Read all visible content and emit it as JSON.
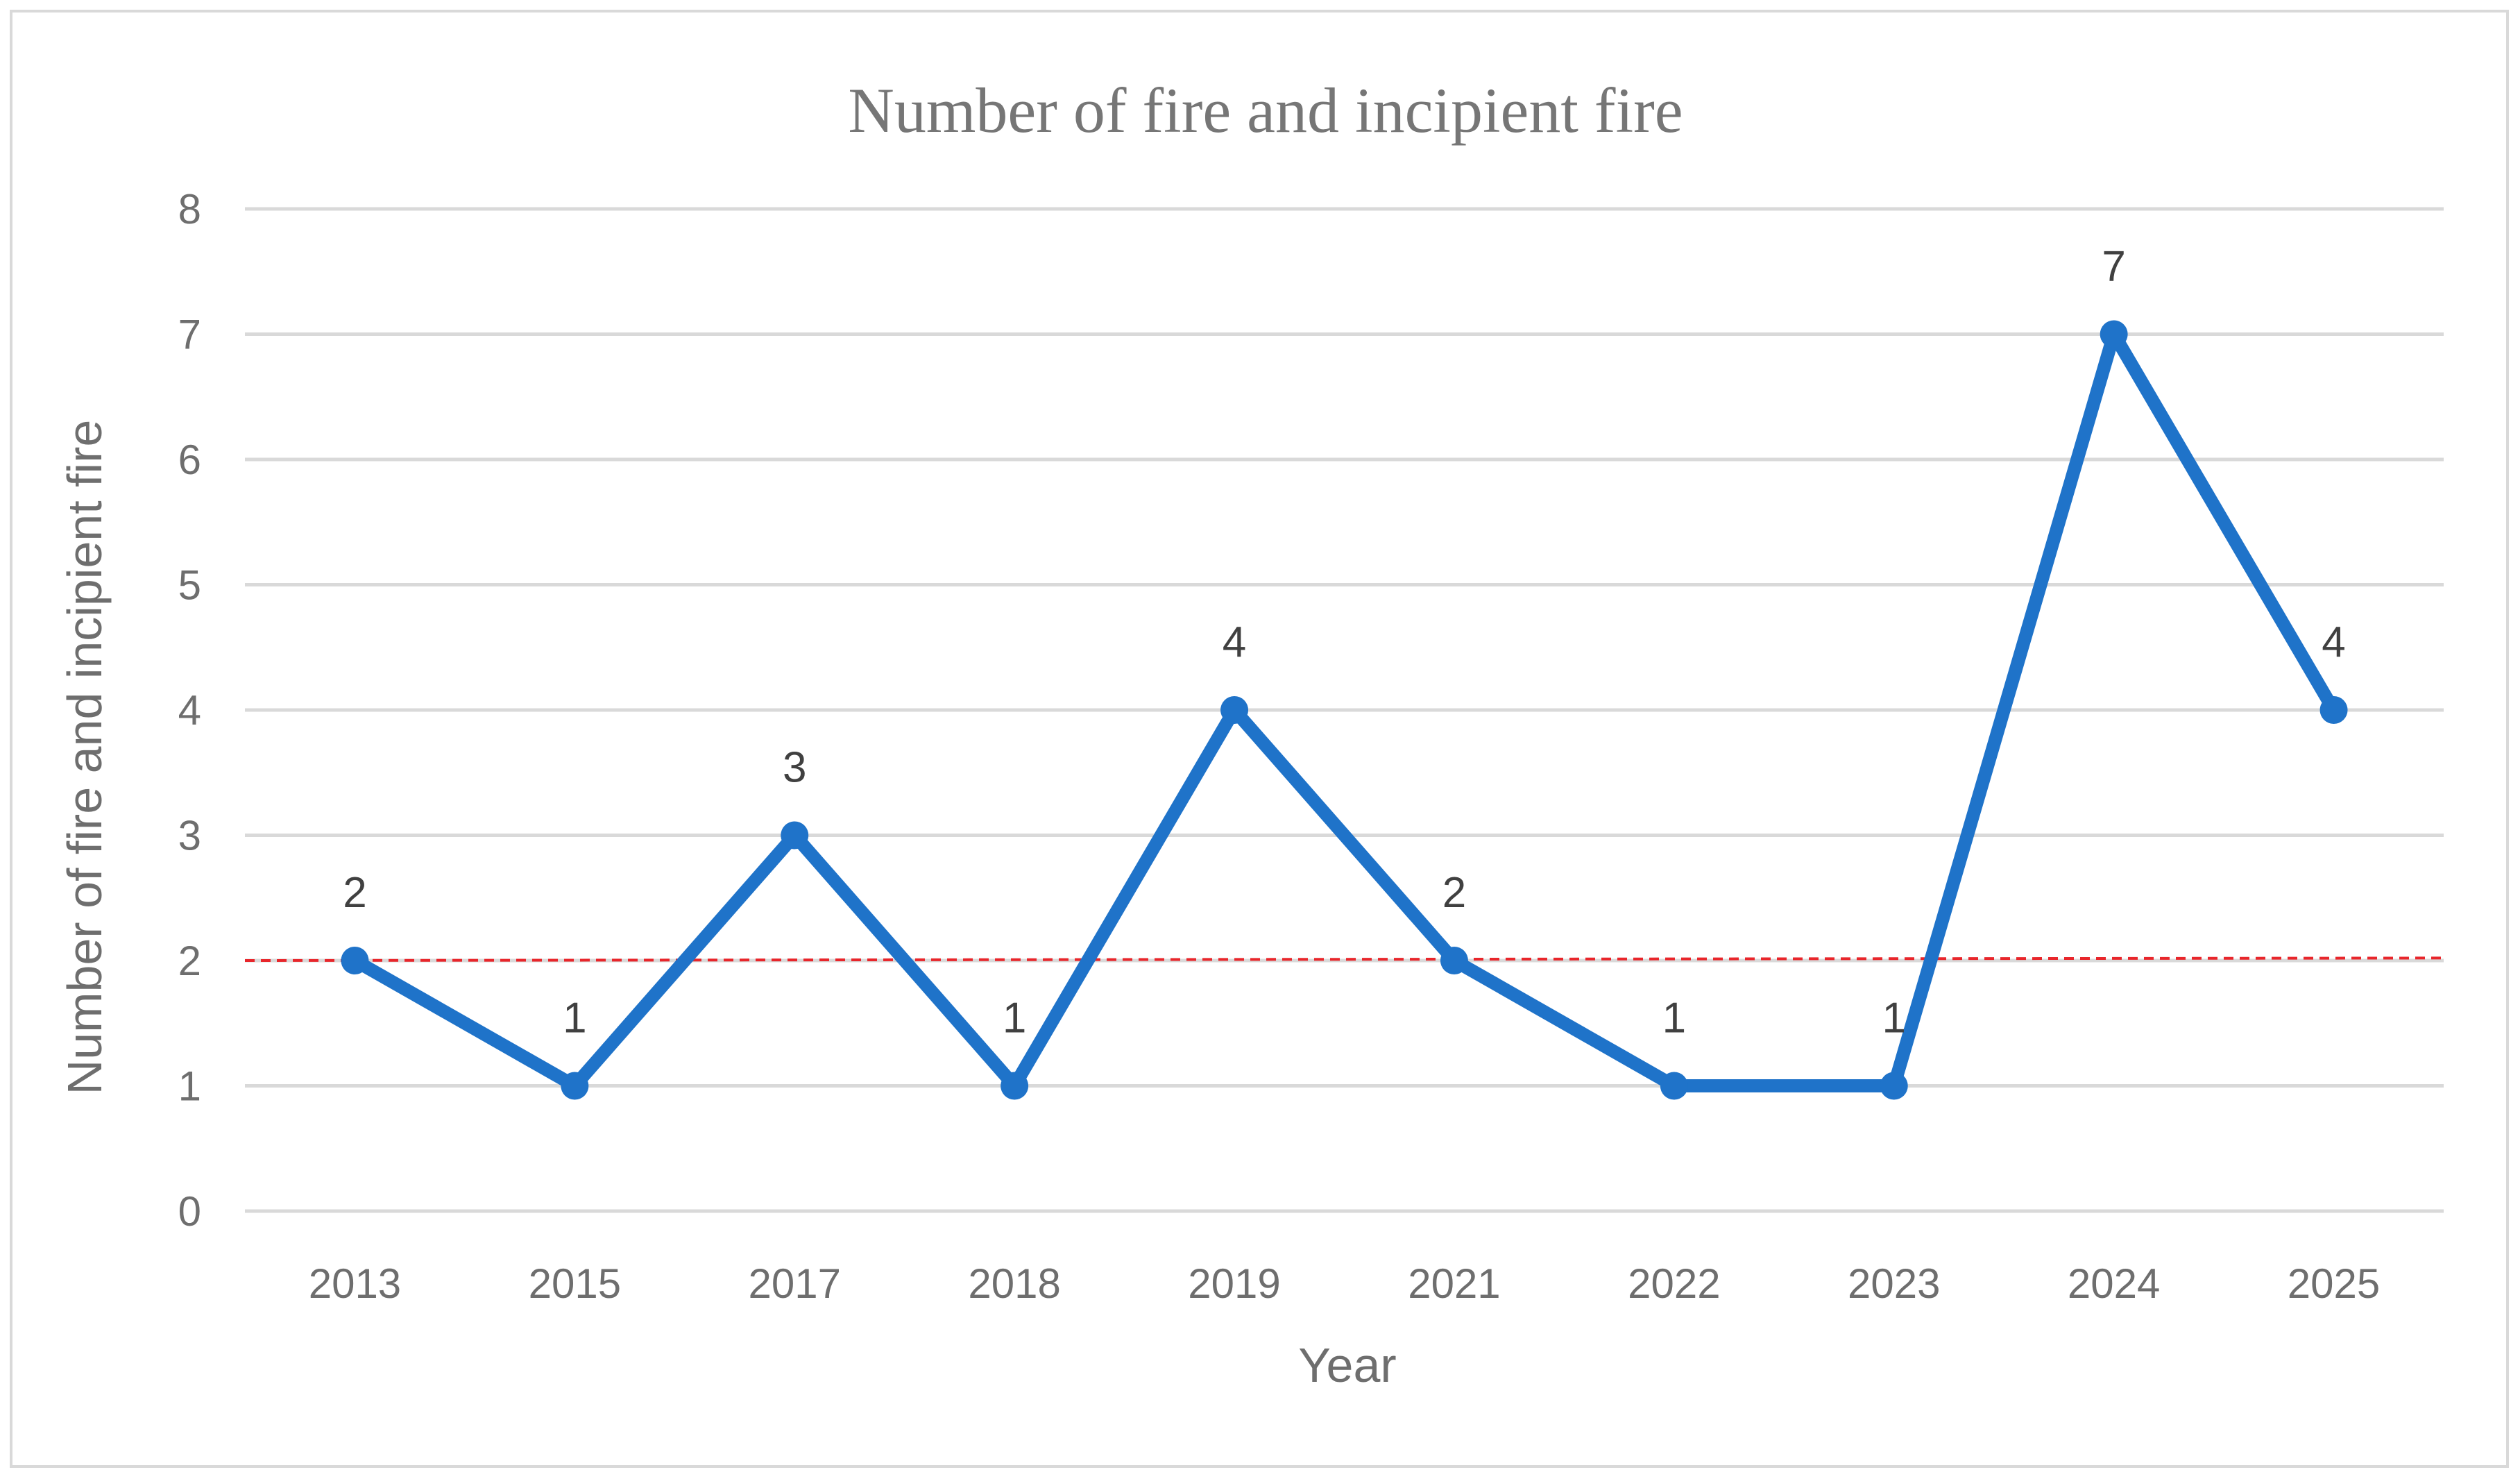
{
  "chart_data": {
    "type": "line",
    "title": "Number of fire and incipient fire",
    "xlabel": "Year",
    "ylabel": "Number of fire and incipient fire",
    "categories": [
      "2013",
      "2015",
      "2017",
      "2018",
      "2019",
      "2021",
      "2022",
      "2023",
      "2024",
      "2025"
    ],
    "series": [
      {
        "values": [
          2,
          1,
          3,
          1,
          4,
          2,
          1,
          1,
          7,
          4
        ],
        "color": "#1f73c9",
        "data_labels": true
      }
    ],
    "yticks": [
      "0",
      "1",
      "2",
      "3",
      "4",
      "5",
      "6",
      "7",
      "8"
    ],
    "ylim": [
      0,
      8
    ],
    "grid": "horizontal",
    "reference_line": {
      "start_value": 2,
      "end_value": 2.02,
      "color": "#e8262b",
      "style": "dashed"
    }
  }
}
